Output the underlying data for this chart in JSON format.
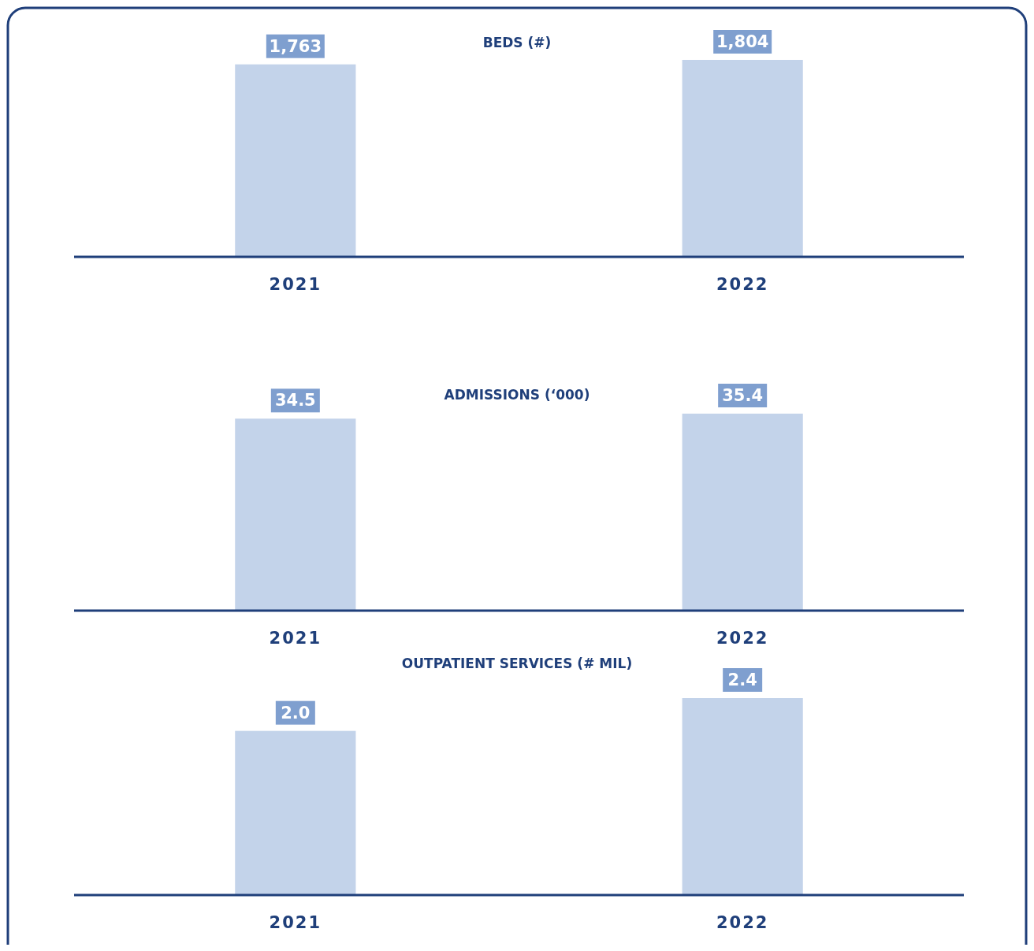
{
  "chart_data": [
    {
      "type": "bar",
      "title": "BEDS (#)",
      "categories": [
        "2021",
        "2022"
      ],
      "values": [
        1763,
        1804
      ],
      "value_labels": [
        "1,763",
        "1,804"
      ],
      "color": "#c3d3ea"
    },
    {
      "type": "bar",
      "title": "ADMISSIONS (‘000)",
      "categories": [
        "2021",
        "2022"
      ],
      "values": [
        34.5,
        35.4
      ],
      "value_labels": [
        "34.5",
        "35.4"
      ],
      "color": "#c3d3ea"
    },
    {
      "type": "bar",
      "title": "OUTPATIENT SERVICES (# MIL)",
      "categories": [
        "2021",
        "2022"
      ],
      "values": [
        2.0,
        2.4
      ],
      "value_labels": [
        "2.0",
        "2.4"
      ],
      "color": "#c3d3ea"
    }
  ]
}
